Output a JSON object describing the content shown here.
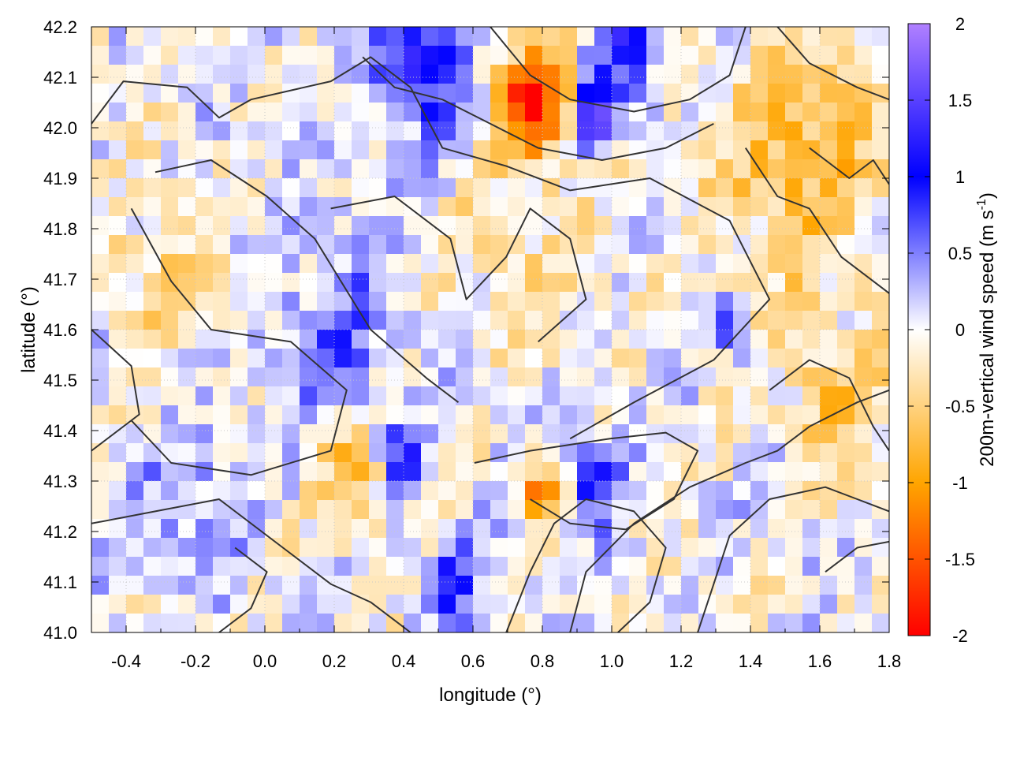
{
  "chart_data": {
    "type": "heatmap",
    "title": "",
    "xlabel": "longitude (°)",
    "ylabel": "latitude (°)",
    "xlim": [
      -0.5,
      1.8
    ],
    "ylim": [
      41.0,
      42.2
    ],
    "x_ticks": [
      -0.4,
      -0.2,
      0.0,
      0.2,
      0.4,
      0.6,
      0.8,
      1.0,
      1.2,
      1.4,
      1.6,
      1.8
    ],
    "x_tick_labels": [
      "-0.4",
      "-0.2",
      "0.0",
      "0.2",
      "0.4",
      "0.6",
      "0.8",
      "1.0",
      "1.2",
      "1.4",
      "1.6",
      "1.8"
    ],
    "y_ticks": [
      41.0,
      41.1,
      41.2,
      41.3,
      41.4,
      41.5,
      41.6,
      41.7,
      41.8,
      41.9,
      42.0,
      42.1,
      42.2
    ],
    "y_tick_labels": [
      "41.0",
      "41.1",
      "41.2",
      "41.3",
      "41.4",
      "41.5",
      "41.6",
      "41.7",
      "41.8",
      "41.9",
      "42.0",
      "42.1",
      "42.2"
    ],
    "grid": true,
    "colorbar": {
      "label": "200m-vertical wind speed (m s",
      "label_sup": "-1",
      "label_close": ")",
      "range": [
        -2,
        2
      ],
      "ticks": [
        2,
        1.5,
        1,
        0.5,
        0,
        -0.5,
        -1,
        -1.5,
        -2
      ],
      "tick_labels": [
        "2",
        "1.5",
        "1",
        "0.5",
        "0",
        "-0.5",
        "-1",
        "-1.5",
        "-2"
      ],
      "colors": {
        "max": "#b080ff",
        "high": "#0000ff",
        "zero": "#ffffff",
        "low": "#ffa500",
        "min": "#ff0000"
      }
    },
    "contour_color": "#333333",
    "hot_spots": [
      {
        "lon": 0.78,
        "lat": 42.05,
        "value": -2.0,
        "spread": 0.1
      },
      {
        "lon": 0.95,
        "lat": 42.02,
        "value": 1.8,
        "spread": 0.06
      },
      {
        "lon": 0.45,
        "lat": 42.12,
        "value": 1.2,
        "spread": 0.12
      },
      {
        "lon": 1.05,
        "lat": 42.15,
        "value": 1.0,
        "spread": 0.1
      },
      {
        "lon": 1.55,
        "lat": 41.95,
        "value": -0.8,
        "spread": 0.25
      },
      {
        "lon": 1.65,
        "lat": 41.45,
        "value": -0.6,
        "spread": 0.15
      },
      {
        "lon": 0.25,
        "lat": 41.3,
        "value": -0.8,
        "spread": 0.1
      },
      {
        "lon": 0.4,
        "lat": 41.35,
        "value": 1.0,
        "spread": 0.06
      },
      {
        "lon": 0.8,
        "lat": 41.28,
        "value": -1.2,
        "spread": 0.06
      },
      {
        "lon": 0.95,
        "lat": 41.3,
        "value": 1.0,
        "spread": 0.08
      },
      {
        "lon": 1.35,
        "lat": 41.6,
        "value": 0.8,
        "spread": 0.05
      },
      {
        "lon": 0.2,
        "lat": 41.6,
        "value": 0.5,
        "spread": 0.2
      },
      {
        "lon": -0.2,
        "lat": 41.25,
        "value": 0.5,
        "spread": 0.15
      },
      {
        "lon": -0.3,
        "lat": 41.7,
        "value": -0.5,
        "spread": 0.15
      },
      {
        "lon": 0.55,
        "lat": 41.1,
        "value": 0.9,
        "spread": 0.08
      },
      {
        "lon": 0.75,
        "lat": 41.75,
        "value": -0.3,
        "spread": 0.2
      },
      {
        "lon": 1.7,
        "lat": 41.15,
        "value": 0.0,
        "spread": 0.2
      }
    ]
  }
}
